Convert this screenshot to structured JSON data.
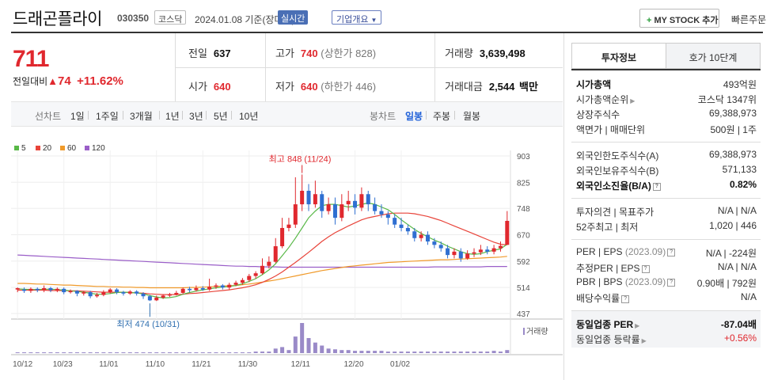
{
  "header": {
    "title": "드래곤플라이",
    "code": "030350",
    "market": "코스닥",
    "date": "2024.01.08 기준(장마감)",
    "realtime": "실시간",
    "company_info": "기업개요",
    "my_stock": "MY STOCK 추가",
    "quick_order": "빠른주문"
  },
  "quote": {
    "price": "711",
    "change_label": "전일대비",
    "change": "74",
    "change_pct": "+11.62%",
    "prev_label": "전일",
    "prev": "637",
    "high_label": "고가",
    "high": "740",
    "upper_limit": "(상한가 828)",
    "volume_label": "거래량",
    "volume": "3,639,498",
    "open_label": "시가",
    "open": "640",
    "low_label": "저가",
    "low": "640",
    "lower_limit": "(하한가 446)",
    "amount_label": "거래대금",
    "amount": "2,544",
    "amount_unit": "백만"
  },
  "toolbar": {
    "line_label": "선차트",
    "periods": [
      "1일",
      "1주일",
      "3개월",
      "1년",
      "3년",
      "5년",
      "10년"
    ],
    "candle_label": "봉차트",
    "candles": [
      "일봉",
      "주봉",
      "월봉"
    ]
  },
  "legend": [
    "5",
    "20",
    "60",
    "120"
  ],
  "colors": {
    "up": "#e0282e",
    "down": "#2f6fd1",
    "ma5": "#58b847",
    "ma20": "#e8443a",
    "ma60": "#f09a2a",
    "ma120": "#9a5ec8",
    "volume": "#9a8ac8"
  },
  "chart_data": {
    "type": "candlestick",
    "y_ticks": [
      "903",
      "825",
      "748",
      "670",
      "592",
      "514",
      "437"
    ],
    "x_ticks": [
      "10/12",
      "10/23",
      "11/01",
      "11/10",
      "11/21",
      "11/30",
      "12/11",
      "12/20",
      "01/02"
    ],
    "ylim": [
      437,
      903
    ],
    "high_annotation": "최고 848 (11/24)",
    "low_annotation": "최저 474 (10/31)",
    "volume_label": "거래량",
    "candles": [
      [
        508,
        512,
        500,
        514
      ],
      [
        508,
        504,
        498,
        514
      ],
      [
        504,
        510,
        498,
        514
      ],
      [
        510,
        506,
        500,
        514
      ],
      [
        506,
        512,
        500,
        520
      ],
      [
        512,
        506,
        500,
        516
      ],
      [
        506,
        510,
        500,
        514
      ],
      [
        510,
        500,
        494,
        514
      ],
      [
        500,
        504,
        496,
        508
      ],
      [
        504,
        496,
        488,
        506
      ],
      [
        496,
        500,
        490,
        504
      ],
      [
        500,
        488,
        482,
        504
      ],
      [
        488,
        492,
        484,
        498
      ],
      [
        492,
        500,
        488,
        506
      ],
      [
        500,
        508,
        496,
        512
      ],
      [
        508,
        500,
        494,
        512
      ],
      [
        500,
        496,
        490,
        504
      ],
      [
        496,
        502,
        492,
        506
      ],
      [
        502,
        496,
        490,
        506
      ],
      [
        496,
        488,
        480,
        500
      ],
      [
        488,
        476,
        474,
        492
      ],
      [
        476,
        484,
        474,
        490
      ],
      [
        484,
        490,
        480,
        494
      ],
      [
        490,
        494,
        486,
        498
      ],
      [
        494,
        498,
        490,
        504
      ],
      [
        498,
        510,
        494,
        514
      ],
      [
        510,
        506,
        500,
        516
      ],
      [
        506,
        512,
        502,
        520
      ],
      [
        512,
        508,
        504,
        518
      ],
      [
        508,
        516,
        504,
        540
      ],
      [
        516,
        520,
        510,
        526
      ],
      [
        520,
        514,
        508,
        524
      ],
      [
        514,
        522,
        508,
        528
      ],
      [
        522,
        528,
        518,
        534
      ],
      [
        528,
        536,
        522,
        542
      ],
      [
        536,
        548,
        530,
        554
      ],
      [
        548,
        556,
        540,
        562
      ],
      [
        556,
        578,
        552,
        600
      ],
      [
        578,
        590,
        570,
        606
      ],
      [
        590,
        636,
        586,
        660
      ],
      [
        636,
        690,
        630,
        720
      ],
      [
        690,
        700,
        680,
        720
      ],
      [
        700,
        760,
        690,
        840
      ],
      [
        760,
        800,
        740,
        848
      ],
      [
        800,
        760,
        740,
        820
      ],
      [
        760,
        790,
        750,
        830
      ],
      [
        790,
        740,
        720,
        800
      ],
      [
        740,
        760,
        730,
        780
      ],
      [
        760,
        720,
        700,
        780
      ],
      [
        720,
        760,
        710,
        790
      ],
      [
        760,
        770,
        740,
        800
      ],
      [
        770,
        750,
        730,
        790
      ],
      [
        750,
        790,
        740,
        810
      ],
      [
        790,
        760,
        740,
        800
      ],
      [
        760,
        740,
        730,
        780
      ],
      [
        740,
        730,
        720,
        760
      ],
      [
        730,
        720,
        700,
        740
      ],
      [
        720,
        700,
        690,
        730
      ],
      [
        700,
        690,
        680,
        720
      ],
      [
        690,
        680,
        670,
        700
      ],
      [
        680,
        660,
        650,
        690
      ],
      [
        660,
        670,
        650,
        680
      ],
      [
        670,
        650,
        640,
        680
      ],
      [
        650,
        640,
        630,
        660
      ],
      [
        640,
        630,
        620,
        650
      ],
      [
        630,
        610,
        600,
        640
      ],
      [
        610,
        620,
        600,
        630
      ],
      [
        620,
        600,
        590,
        630
      ],
      [
        600,
        614,
        596,
        624
      ],
      [
        614,
        618,
        604,
        630
      ],
      [
        618,
        626,
        610,
        640
      ],
      [
        626,
        620,
        612,
        636
      ],
      [
        620,
        630,
        612,
        640
      ],
      [
        630,
        637,
        620,
        650
      ],
      [
        640,
        711,
        640,
        740
      ]
    ],
    "ma5": [
      510,
      509,
      508,
      508,
      509,
      509,
      508,
      506,
      504,
      502,
      500,
      497,
      494,
      494,
      496,
      499,
      500,
      499,
      498,
      495,
      490,
      486,
      483,
      484,
      487,
      494,
      499,
      503,
      507,
      510,
      513,
      515,
      517,
      520,
      525,
      532,
      540,
      552,
      566,
      584,
      608,
      632,
      660,
      690,
      720,
      740,
      756,
      760,
      760,
      756,
      752,
      755,
      760,
      764,
      760,
      752,
      744,
      730,
      714,
      700,
      686,
      674,
      664,
      654,
      646,
      636,
      628,
      620,
      614,
      612,
      614,
      620,
      624,
      628,
      642
    ],
    "ma20": [
      506,
      506,
      506,
      506,
      506,
      505,
      505,
      505,
      504,
      504,
      503,
      502,
      501,
      500,
      500,
      500,
      500,
      499,
      498,
      497,
      495,
      494,
      493,
      493,
      493,
      494,
      496,
      497,
      499,
      501,
      503,
      505,
      507,
      510,
      513,
      517,
      522,
      529,
      538,
      548,
      560,
      574,
      588,
      603,
      618,
      634,
      650,
      664,
      676,
      686,
      696,
      705,
      714,
      720,
      724,
      728,
      732,
      734,
      734,
      734,
      732,
      728,
      724,
      718,
      712,
      704,
      696,
      688,
      680,
      672,
      664,
      656,
      648,
      642,
      640
    ],
    "ma60": [
      526,
      526,
      525,
      524,
      524,
      523,
      522,
      521,
      521,
      520,
      519,
      518,
      517,
      517,
      516,
      516,
      515,
      515,
      514,
      514,
      513,
      513,
      513,
      513,
      513,
      513,
      514,
      514,
      515,
      516,
      517,
      518,
      519,
      520,
      522,
      524,
      527,
      530,
      533,
      536,
      540,
      544,
      548,
      552,
      556,
      560,
      564,
      567,
      570,
      573,
      576,
      578,
      580,
      582,
      584,
      586,
      588,
      589,
      590,
      591,
      592,
      593,
      594,
      595,
      596,
      596,
      597,
      598,
      599,
      600,
      601,
      602,
      603,
      604,
      606
    ],
    "ma120": [
      610,
      609,
      608,
      607,
      606,
      605,
      604,
      603,
      602,
      601,
      600,
      599,
      598,
      597,
      596,
      595,
      594,
      593,
      592,
      591,
      590,
      589,
      588,
      587,
      586,
      585,
      584,
      583,
      582,
      581,
      580,
      579,
      578,
      577,
      577,
      576,
      576,
      575,
      575,
      575,
      574,
      574,
      574,
      574,
      574,
      574,
      574,
      574,
      574,
      574,
      574,
      574,
      574,
      574,
      574,
      574,
      574,
      574,
      574,
      574,
      574,
      574,
      574,
      575,
      575,
      575,
      575,
      575,
      575,
      575,
      575,
      576,
      576,
      576,
      576
    ],
    "volumes": [
      1,
      1,
      1,
      1,
      1,
      1,
      1,
      1,
      1,
      1,
      1,
      1,
      1,
      1,
      1,
      1,
      1,
      1,
      1,
      1,
      1,
      1,
      1,
      1,
      1,
      1,
      1,
      1,
      1,
      1,
      1,
      1,
      1,
      1,
      1,
      1,
      2,
      2,
      2,
      6,
      8,
      4,
      22,
      40,
      20,
      14,
      10,
      6,
      5,
      4,
      4,
      3,
      3,
      3,
      3,
      3,
      2,
      2,
      2,
      2,
      2,
      2,
      2,
      2,
      2,
      2,
      2,
      2,
      2,
      2,
      2,
      2,
      3,
      2,
      4
    ]
  },
  "invest": {
    "tab_info": "투자정보",
    "tab_orderbook": "호가 10단계",
    "market_cap_label": "시가총액",
    "market_cap": "493억원",
    "cap_rank_label": "시가총액순위",
    "cap_rank": "코스닥 1347위",
    "shares_label": "상장주식수",
    "shares": "69,388,973",
    "par_label": "액면가 | 매매단위",
    "par": "500원 | 1주",
    "foreign_limit_label": "외국인한도주식수(A)",
    "foreign_limit": "69,388,973",
    "foreign_hold_label": "외국인보유주식수(B)",
    "foreign_hold": "571,133",
    "foreign_ratio_label": "외국인소진율(B/A)",
    "foreign_ratio": "0.82%",
    "opinion_label": "투자의견 | 목표주가",
    "opinion": "N/A | N/A",
    "week52_label": "52주최고 | 최저",
    "week52": "1,020 | 446",
    "per_label": "PER | EPS",
    "per_period": "(2023.09)",
    "per": "N/A | -224원",
    "est_per_label": "추정PER | EPS",
    "est_per": "N/A | N/A",
    "pbr_label": "PBR | BPS",
    "pbr_period": "(2023.09)",
    "pbr": "0.90배 | 792원",
    "div_label": "배당수익률",
    "div": "N/A",
    "industry_per_label": "동일업종 PER",
    "industry_per": "-87.04배",
    "industry_rate_label": "동일업종 등락률",
    "industry_rate": "+0.56%"
  }
}
